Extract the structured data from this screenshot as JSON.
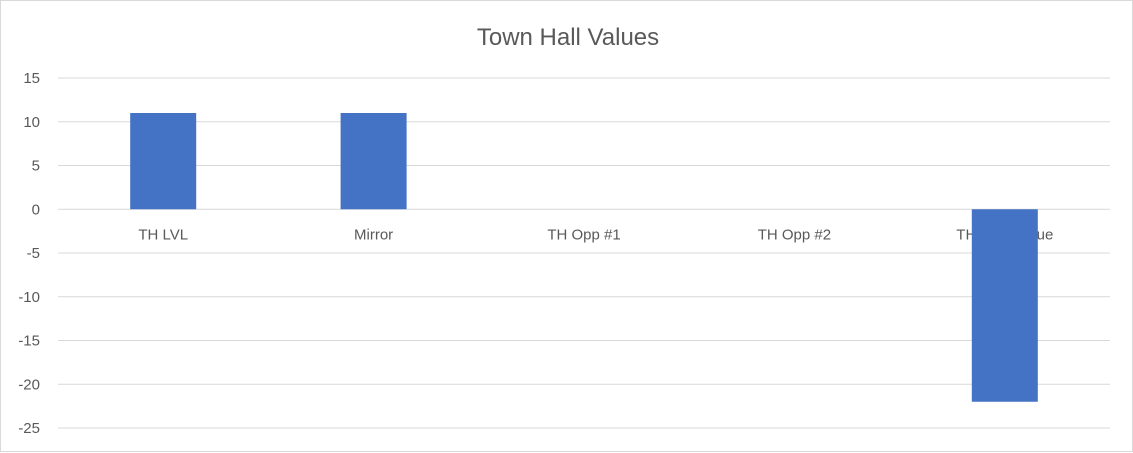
{
  "chart_data": {
    "type": "bar",
    "title": "Town Hall Values",
    "categories": [
      "TH LVL",
      "Mirror",
      "TH Opp #1",
      "TH Opp #2",
      "TH Total Value"
    ],
    "values": [
      11,
      11,
      0,
      0,
      -22
    ],
    "ylim": [
      -25,
      15
    ],
    "yticks": [
      15,
      10,
      5,
      0,
      -5,
      -10,
      -15,
      -20,
      -25
    ],
    "xlabel": "",
    "ylabel": "",
    "grid": true,
    "bar_color": "#4472C4",
    "grid_color": "#d9d9d9",
    "text_color": "#595959"
  }
}
